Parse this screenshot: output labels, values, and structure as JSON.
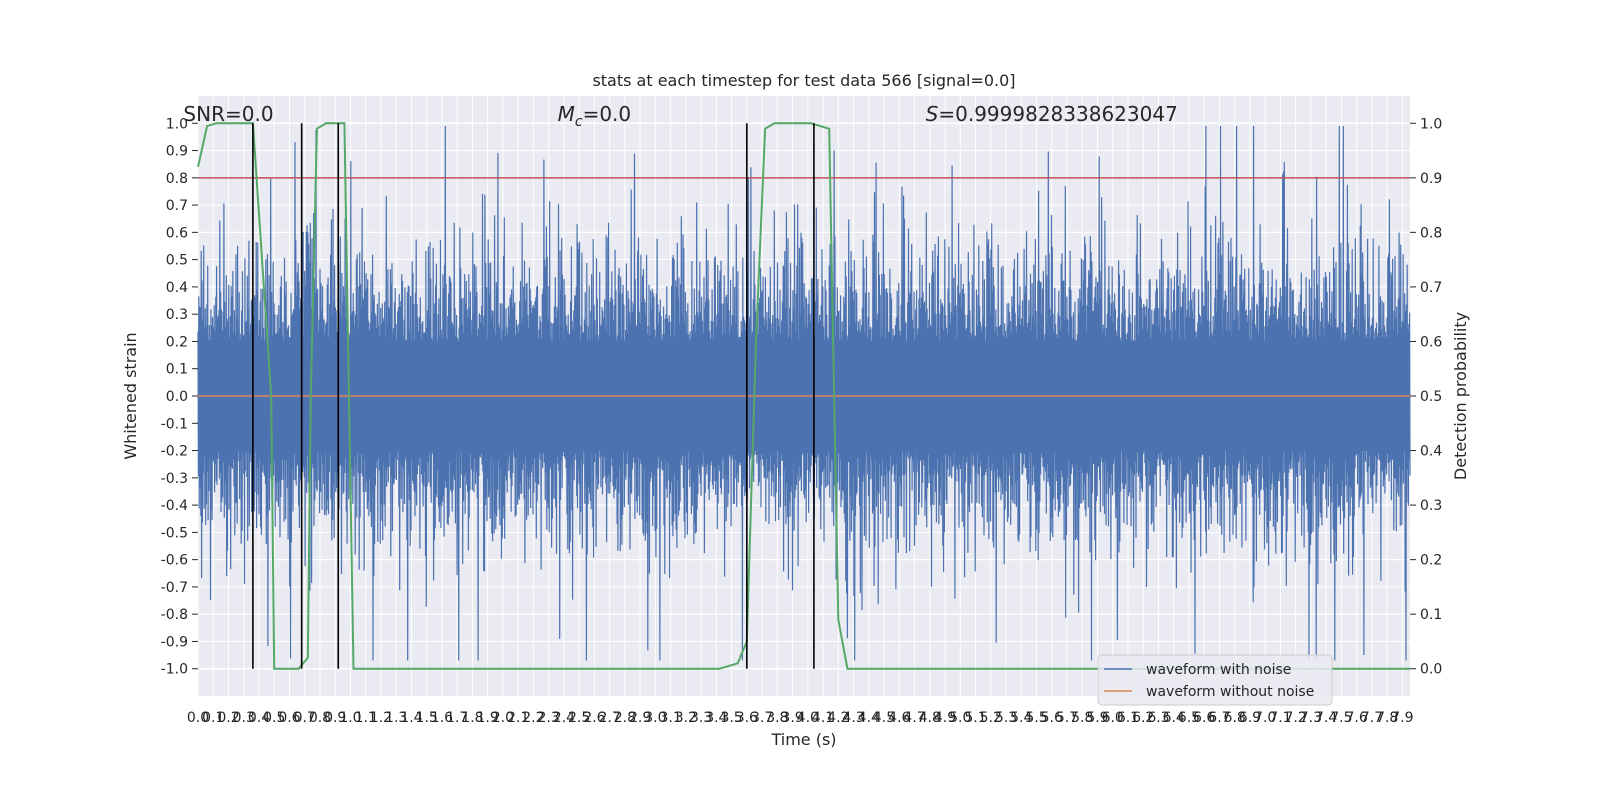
{
  "chart_data": {
    "type": "line",
    "title": "stats at each timestep for test data 566 [signal=0.0]",
    "xlabel": "Time (s)",
    "ylabel": "Whitened strain",
    "y2label": "Detection probability",
    "xlim": [
      0.0,
      7.95
    ],
    "ylim": [
      -1.1,
      1.1
    ],
    "y2lim": [
      -0.05,
      1.05
    ],
    "x_ticks": [
      "0.0",
      "0.1",
      "0.2",
      "0.3",
      "0.4",
      "0.5",
      "0.6",
      "0.7",
      "0.8",
      "0.9",
      "1.0",
      "1.1",
      "1.2",
      "1.3",
      "1.4",
      "1.5",
      "1.6",
      "1.7",
      "1.8",
      "1.9",
      "2.0",
      "2.1",
      "2.2",
      "2.3",
      "2.4",
      "2.5",
      "2.6",
      "2.7",
      "2.8",
      "2.9",
      "3.0",
      "3.1",
      "3.2",
      "3.3",
      "3.4",
      "3.5",
      "3.6",
      "3.7",
      "3.8",
      "3.9",
      "4.0",
      "4.1",
      "4.2",
      "4.3",
      "4.4",
      "4.5",
      "4.6",
      "4.7",
      "4.8",
      "4.9",
      "5.0",
      "5.1",
      "5.2",
      "5.3",
      "5.4",
      "5.5",
      "5.6",
      "5.7",
      "5.8",
      "5.9",
      "6.0",
      "6.1",
      "6.2",
      "6.3",
      "6.4",
      "6.5",
      "6.6",
      "6.7",
      "6.8",
      "6.9",
      "7.0",
      "7.1",
      "7.2",
      "7.3",
      "7.4",
      "7.5",
      "7.6",
      "7.7",
      "7.8",
      "7.9"
    ],
    "y_ticks": [
      "-1.0",
      "-0.9",
      "-0.8",
      "-0.7",
      "-0.6",
      "-0.5",
      "-0.4",
      "-0.3",
      "-0.2",
      "-0.1",
      "0.0",
      "0.1",
      "0.2",
      "0.3",
      "0.4",
      "0.5",
      "0.6",
      "0.7",
      "0.8",
      "0.9",
      "1.0"
    ],
    "y2_ticks": [
      "0.0",
      "0.1",
      "0.2",
      "0.3",
      "0.4",
      "0.5",
      "0.6",
      "0.7",
      "0.8",
      "0.9",
      "1.0"
    ],
    "series": [
      {
        "name": "waveform with noise",
        "color": "#4c72b0",
        "axis": "left",
        "note_values": "dense noise trace spanning roughly -0.97 to 0.99 across 0–7.95 s"
      },
      {
        "name": "waveform without noise",
        "color": "#dd8452",
        "axis": "left",
        "x": [
          0.0,
          7.95
        ],
        "y": [
          0.0,
          0.0
        ]
      },
      {
        "name": "",
        "color": "#55a868",
        "axis": "right",
        "x": [
          0.0,
          0.06,
          0.12,
          0.24,
          0.36,
          0.48,
          0.5,
          0.6,
          0.66,
          0.72,
          0.74,
          0.78,
          0.84,
          0.96,
          1.02,
          3.42,
          3.54,
          3.6,
          3.66,
          3.72,
          3.78,
          3.9,
          4.02,
          4.14,
          4.2,
          4.26,
          4.32,
          4.44,
          7.95
        ],
        "y": [
          0.92,
          0.995,
          1.0,
          1.0,
          1.0,
          0.5,
          0.0,
          0.0,
          0.0,
          0.02,
          0.5,
          0.99,
          1.0,
          1.0,
          0.0,
          0.0,
          0.01,
          0.05,
          0.6,
          0.99,
          1.0,
          1.0,
          1.0,
          0.99,
          0.09,
          0.0,
          0.0,
          0.0,
          0.0
        ]
      }
    ],
    "threshold": {
      "value": 0.9,
      "axis": "right",
      "color": "#c44e52"
    },
    "vlines": [
      0.36,
      0.68,
      0.92,
      3.6,
      4.04
    ],
    "annotations": [
      {
        "text": "SNR=0.0",
        "x": 0.2
      },
      {
        "text_main": "M",
        "text_sub": "c",
        "text_rest": "=0.0",
        "x": 2.6
      },
      {
        "text_main": "S",
        "text_rest": "=0.9999828338623047",
        "x": 5.6
      }
    ],
    "legend_location": "lower-right",
    "grid": true
  }
}
